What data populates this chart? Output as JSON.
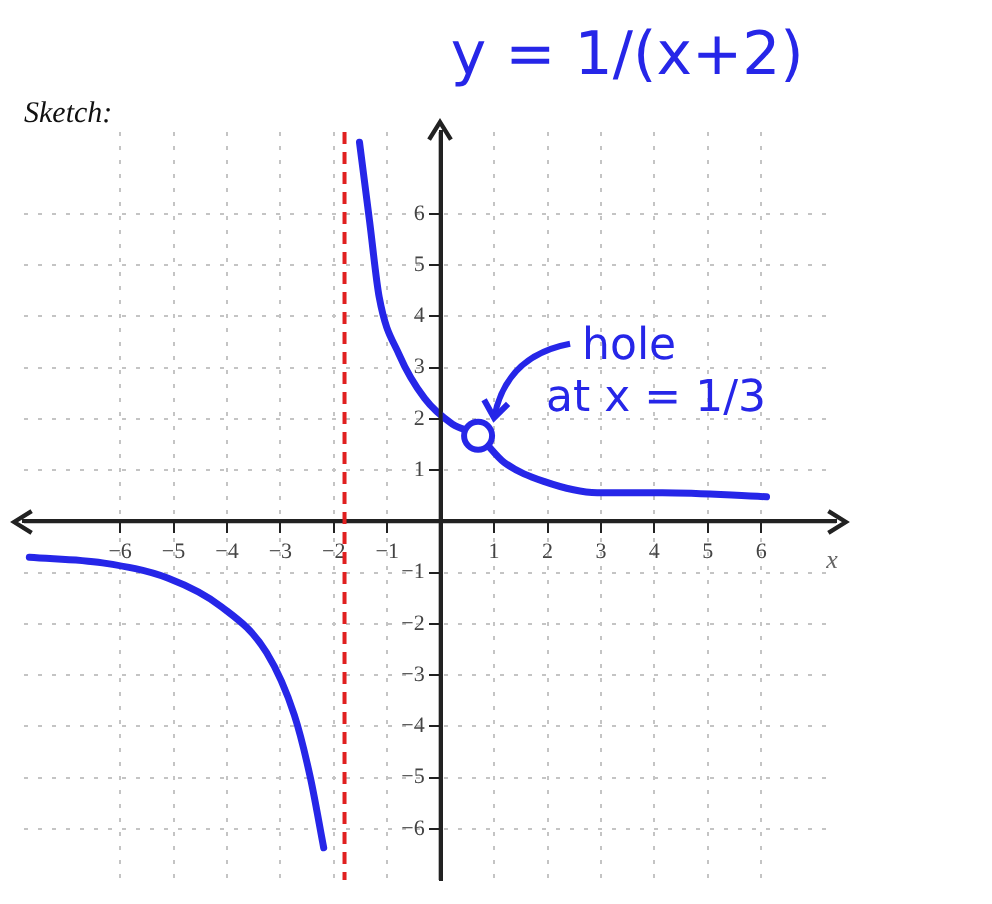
{
  "chart_data": {
    "type": "line",
    "title": "Sketch:",
    "xlabel": "x",
    "annotations": [
      "y = 1/(x+2)",
      {
        "text": "hole at x = 1/3",
        "x": 0.7,
        "y": 1.67
      }
    ],
    "series": [
      {
        "color": "#2626e8",
        "x": [
          -1.52,
          -1.33,
          -1.15,
          -0.78,
          -0.3,
          0.22,
          0.7,
          1.19,
          1.93,
          2.93,
          4.15,
          6.1
        ],
        "values": [
          7.4,
          5.85,
          4.37,
          3.26,
          2.4,
          1.9,
          1.67,
          1.15,
          0.78,
          0.56,
          0.56,
          0.48
        ]
      },
      {
        "color": "#2626e8",
        "x": [
          -7.7,
          -6.33,
          -5.1,
          -4.1,
          -3.26,
          -2.74,
          -2.44,
          -2.19
        ],
        "values": [
          -0.7,
          -0.81,
          -1.11,
          -1.67,
          -2.56,
          -3.78,
          -5,
          -6.37
        ]
      }
    ],
    "xlim": [
      -7.8,
      7.4
    ],
    "ylim": [
      -7,
      7.6
    ],
    "xticks": [
      -6,
      -5,
      -4,
      -3,
      -2,
      -1,
      1,
      2,
      3,
      4,
      5,
      6
    ],
    "yticks": [
      -6,
      -5,
      -4,
      -3,
      -2,
      -1,
      1,
      2,
      3,
      4,
      5,
      6
    ],
    "ref_lines": [
      {
        "axis": "x",
        "value": -1.8,
        "color": "#e02020",
        "line_style": "dashed"
      }
    ],
    "grid": true,
    "legend": false,
    "marker": "none",
    "line_style": "solid"
  }
}
